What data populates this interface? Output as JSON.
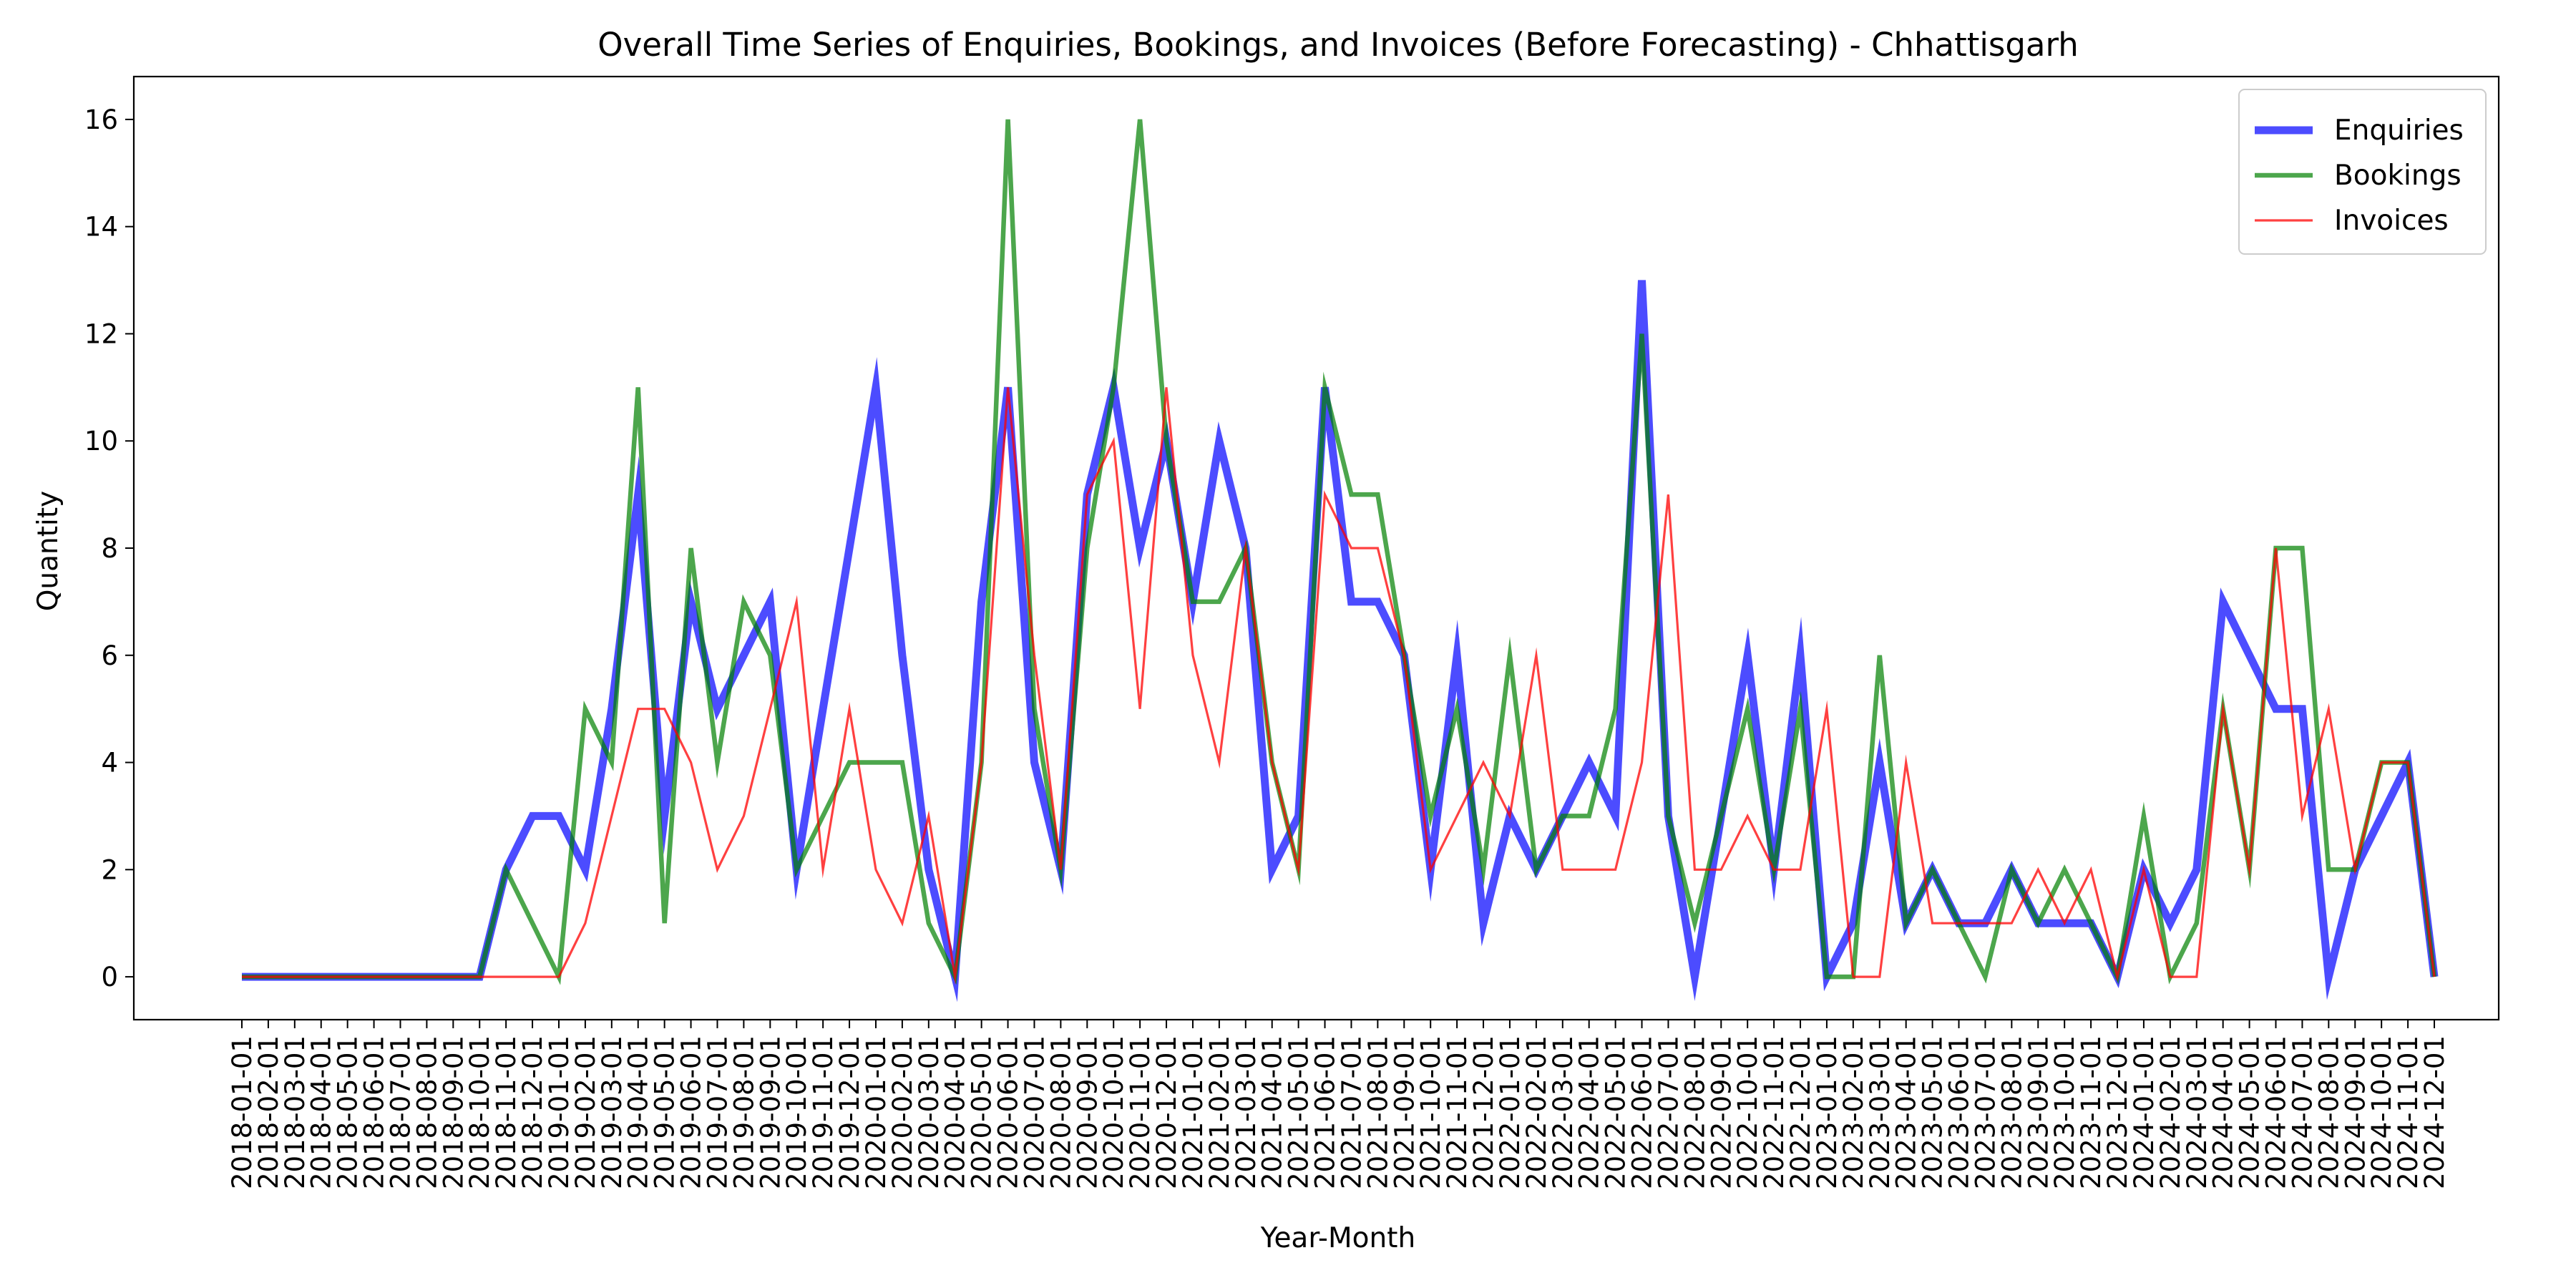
{
  "chart_data": {
    "type": "line",
    "title": "Overall Time Series of Enquiries, Bookings, and Invoices (Before Forecasting) - Chhattisgarh",
    "xlabel": "Year-Month",
    "ylabel": "Quantity",
    "ylim": [
      -0.8,
      16.8
    ],
    "yticks": [
      0,
      2,
      4,
      6,
      8,
      10,
      12,
      14,
      16
    ],
    "grid": false,
    "legend_position": "top-right",
    "categories": [
      "2018-01-01",
      "2018-02-01",
      "2018-03-01",
      "2018-04-01",
      "2018-05-01",
      "2018-06-01",
      "2018-07-01",
      "2018-08-01",
      "2018-09-01",
      "2018-10-01",
      "2018-11-01",
      "2018-12-01",
      "2019-01-01",
      "2019-02-01",
      "2019-03-01",
      "2019-04-01",
      "2019-05-01",
      "2019-06-01",
      "2019-07-01",
      "2019-08-01",
      "2019-09-01",
      "2019-10-01",
      "2019-11-01",
      "2019-12-01",
      "2020-01-01",
      "2020-02-01",
      "2020-03-01",
      "2020-04-01",
      "2020-05-01",
      "2020-06-01",
      "2020-07-01",
      "2020-08-01",
      "2020-09-01",
      "2020-10-01",
      "2020-11-01",
      "2020-12-01",
      "2021-01-01",
      "2021-02-01",
      "2021-03-01",
      "2021-04-01",
      "2021-05-01",
      "2021-06-01",
      "2021-07-01",
      "2021-08-01",
      "2021-09-01",
      "2021-10-01",
      "2021-11-01",
      "2021-12-01",
      "2022-01-01",
      "2022-02-01",
      "2022-03-01",
      "2022-04-01",
      "2022-05-01",
      "2022-06-01",
      "2022-07-01",
      "2022-08-01",
      "2022-09-01",
      "2022-10-01",
      "2022-11-01",
      "2022-12-01",
      "2023-01-01",
      "2023-02-01",
      "2023-03-01",
      "2023-04-01",
      "2023-05-01",
      "2023-06-01",
      "2023-07-01",
      "2023-08-01",
      "2023-09-01",
      "2023-10-01",
      "2023-11-01",
      "2023-12-01",
      "2024-01-01",
      "2024-02-01",
      "2024-03-01",
      "2024-04-01",
      "2024-05-01",
      "2024-06-01",
      "2024-07-01",
      "2024-08-01",
      "2024-09-01",
      "2024-10-01",
      "2024-11-01",
      "2024-12-01"
    ],
    "series": [
      {
        "name": "Enquiries",
        "color": "#0000ff",
        "opacity": 0.7,
        "weight": "thick",
        "values": [
          0,
          0,
          0,
          0,
          0,
          0,
          0,
          0,
          0,
          0,
          2,
          3,
          3,
          2,
          5,
          9,
          3,
          7,
          5,
          6,
          7,
          2,
          5,
          8,
          11,
          6,
          2,
          0,
          7,
          11,
          4,
          2,
          9,
          11,
          8,
          10,
          7,
          10,
          8,
          2,
          3,
          11,
          7,
          7,
          6,
          2,
          6,
          1,
          3,
          2,
          3,
          4,
          3,
          13,
          3,
          0,
          3,
          6,
          2,
          6,
          0,
          1,
          4,
          1,
          2,
          1,
          1,
          2,
          1,
          1,
          1,
          0,
          2,
          1,
          2,
          7,
          6,
          5,
          5,
          0,
          2,
          3,
          4,
          0
        ]
      },
      {
        "name": "Bookings",
        "color": "#008000",
        "opacity": 0.7,
        "weight": "medium",
        "values": [
          0,
          0,
          0,
          0,
          0,
          0,
          0,
          0,
          0,
          0,
          2,
          1,
          0,
          5,
          4,
          11,
          1,
          8,
          4,
          7,
          6,
          2,
          3,
          4,
          4,
          4,
          1,
          0,
          4,
          16,
          5,
          2,
          8,
          11,
          16,
          10,
          7,
          7,
          8,
          4,
          2,
          11,
          9,
          9,
          6,
          3,
          5,
          2,
          6,
          2,
          3,
          3,
          5,
          12,
          3,
          1,
          3,
          5,
          2,
          5,
          0,
          0,
          6,
          1,
          2,
          1,
          0,
          2,
          1,
          2,
          1,
          0,
          3,
          0,
          1,
          5,
          2,
          8,
          8,
          2,
          2,
          4,
          4,
          0
        ]
      },
      {
        "name": "Invoices",
        "color": "#ff0000",
        "opacity": 0.75,
        "weight": "thin",
        "values": [
          0,
          0,
          0,
          0,
          0,
          0,
          0,
          0,
          0,
          0,
          0,
          0,
          0,
          1,
          3,
          5,
          5,
          4,
          2,
          3,
          5,
          7,
          2,
          5,
          2,
          1,
          3,
          0,
          4,
          11,
          6,
          2,
          9,
          10,
          5,
          11,
          6,
          4,
          8,
          4,
          2,
          9,
          8,
          8,
          6,
          2,
          3,
          4,
          3,
          6,
          2,
          2,
          2,
          4,
          9,
          2,
          2,
          3,
          2,
          2,
          5,
          0,
          0,
          4,
          1,
          1,
          1,
          1,
          2,
          1,
          2,
          0,
          2,
          0,
          0,
          5,
          2,
          8,
          3,
          5,
          2,
          4,
          4,
          0
        ]
      }
    ]
  }
}
